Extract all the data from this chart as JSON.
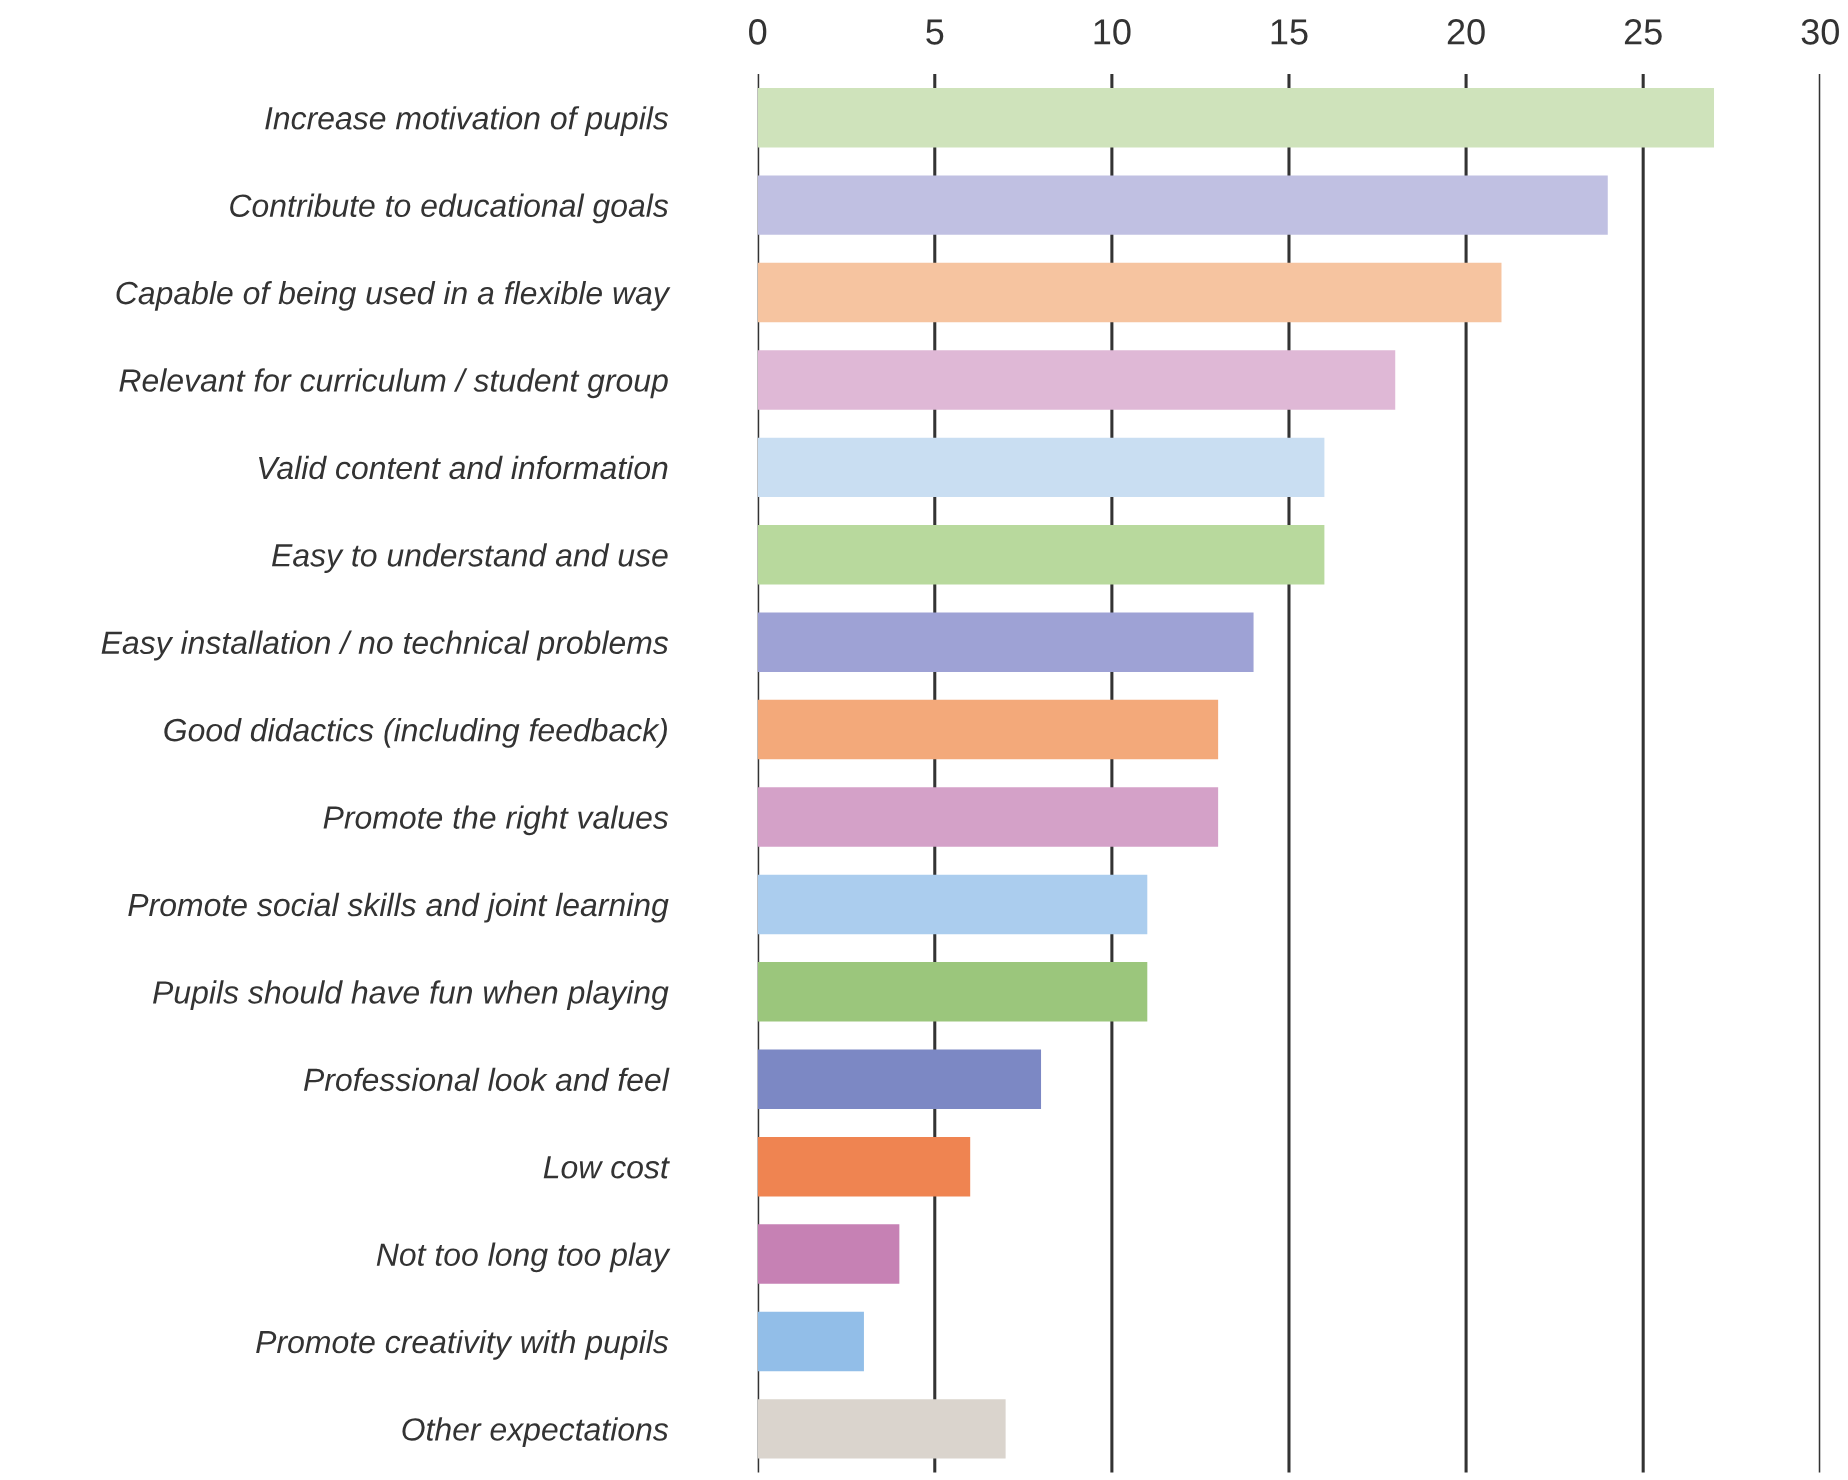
{
  "chart_data": {
    "type": "bar",
    "orientation": "horizontal",
    "categories": [
      "Increase motivation of pupils",
      "Contribute to educational goals",
      "Capable of being used in a flexible way",
      "Relevant for curriculum / student group",
      "Valid content and information",
      "Easy to understand and use",
      "Easy installation / no technical problems",
      "Good didactics (including feedback)",
      "Promote the right values",
      "Promote social skills and joint learning",
      "Pupils should have fun when playing",
      "Professional look and feel",
      "Low cost",
      "Not too long too play",
      "Promote creativity with pupils",
      "Other expectations"
    ],
    "values": [
      27,
      24,
      21,
      18,
      16,
      16,
      14,
      13,
      13,
      11,
      11,
      8,
      6,
      4,
      3,
      7
    ],
    "colors": [
      "#cfe3bb",
      "#c0c0e2",
      "#f6c4a0",
      "#dfb8d6",
      "#c9def2",
      "#b8d99d",
      "#9ea2d5",
      "#f3a97a",
      "#d4a1c8",
      "#abcdee",
      "#9bc67c",
      "#7c88c4",
      "#ef8451",
      "#c681b4",
      "#92bee8",
      "#dad4cd"
    ],
    "xlim": [
      0,
      30
    ],
    "xticks": [
      0,
      5,
      10,
      15,
      20,
      25,
      30
    ],
    "grid": "x"
  }
}
